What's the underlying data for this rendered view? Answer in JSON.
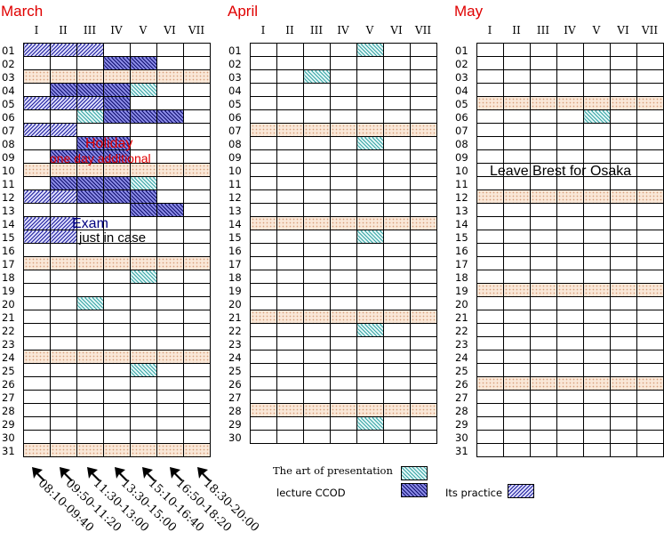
{
  "months": [
    {
      "name": "March",
      "days": 31,
      "weekends": [
        3,
        10,
        17,
        24,
        31
      ],
      "presentation": [
        [
          20,
          3
        ],
        [
          25,
          5
        ],
        [
          18,
          5
        ],
        [
          4,
          5
        ],
        [
          11,
          5
        ],
        [
          6,
          3
        ]
      ],
      "lecture": [
        [
          2,
          4
        ],
        [
          2,
          5
        ],
        [
          4,
          2
        ],
        [
          4,
          3
        ],
        [
          4,
          4
        ],
        [
          5,
          4
        ],
        [
          6,
          4
        ],
        [
          6,
          5
        ],
        [
          6,
          6
        ],
        [
          8,
          3
        ],
        [
          8,
          4
        ],
        [
          9,
          2
        ],
        [
          9,
          3
        ],
        [
          9,
          4
        ],
        [
          11,
          2
        ],
        [
          11,
          3
        ],
        [
          11,
          4
        ],
        [
          12,
          3
        ],
        [
          12,
          4
        ],
        [
          12,
          5
        ],
        [
          13,
          5
        ],
        [
          13,
          6
        ]
      ],
      "practice": [
        [
          1,
          1
        ],
        [
          1,
          2
        ],
        [
          1,
          3
        ],
        [
          5,
          1
        ],
        [
          5,
          2
        ],
        [
          5,
          3
        ],
        [
          7,
          1
        ],
        [
          7,
          2
        ],
        [
          12,
          1
        ],
        [
          12,
          2
        ],
        [
          14,
          1
        ],
        [
          14,
          2
        ],
        [
          15,
          1
        ],
        [
          15,
          2
        ]
      ],
      "notes": [
        {
          "text": "Holiday",
          "color": "#e00000"
        },
        {
          "text": "one day additional",
          "color": "#e00000"
        },
        {
          "text": "Exam",
          "color": "#000080"
        },
        {
          "text": "just in case",
          "color": "#000000"
        }
      ]
    },
    {
      "name": "April",
      "days": 30,
      "weekends": [
        7,
        14,
        21,
        28
      ],
      "presentation": [
        [
          1,
          5
        ],
        [
          3,
          3
        ],
        [
          8,
          5
        ],
        [
          15,
          5
        ],
        [
          22,
          5
        ],
        [
          29,
          5
        ]
      ],
      "lecture": [],
      "practice": [],
      "notes": []
    },
    {
      "name": "May",
      "days": 31,
      "weekends": [
        5,
        12,
        19,
        26
      ],
      "presentation": [
        [
          6,
          5
        ]
      ],
      "lecture": [],
      "practice": [],
      "notes": [
        {
          "text": "Leave Brest for Osaka",
          "color": "#000000"
        }
      ]
    }
  ],
  "columns": [
    "I",
    "II",
    "III",
    "IV",
    "V",
    "VI",
    "VII"
  ],
  "time_slots": [
    "08:10-09:40",
    "09:50-11:20",
    "11:30-13:00",
    "13:30-15:00",
    "15:10-16:40",
    "16:50-18:20",
    "18:30-20:00"
  ],
  "legend": {
    "presentation": "The art of presentation",
    "lecture": "lecture CCOD",
    "practice": "Its practice"
  }
}
